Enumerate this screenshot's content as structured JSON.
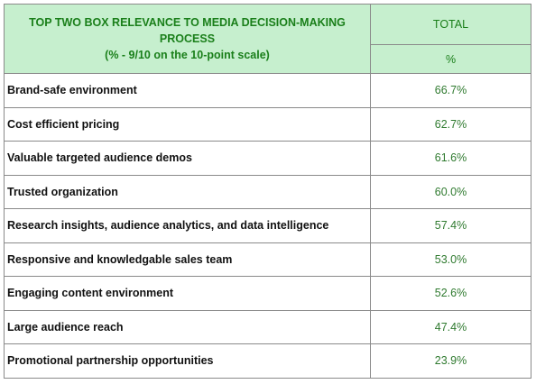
{
  "header": {
    "title_line1": "TOP TWO BOX RELEVANCE TO MEDIA DECISION-MAKING PROCESS",
    "title_line2": "(% - 9/10 on the 10-point scale)",
    "column_header": "TOTAL",
    "column_unit": "%"
  },
  "colors": {
    "header_fill": "#c6efce",
    "header_text": "#1a7f1a",
    "value_text": "#2f7a2f",
    "border": "#8a8a8a"
  },
  "chart_data": {
    "type": "table",
    "title": "TOP TWO BOX RELEVANCE TO MEDIA DECISION-MAKING PROCESS",
    "subtitle": "(% - 9/10 on the 10-point scale)",
    "columns": [
      "TOTAL"
    ],
    "unit": "%",
    "rows": [
      {
        "label": "Brand-safe environment",
        "value": "66.7%"
      },
      {
        "label": "Cost efficient pricing",
        "value": "62.7%"
      },
      {
        "label": "Valuable targeted audience demos",
        "value": "61.6%"
      },
      {
        "label": "Trusted organization",
        "value": "60.0%"
      },
      {
        "label": "Research insights, audience analytics, and data intelligence",
        "value": "57.4%"
      },
      {
        "label": "Responsive and knowledgable sales team",
        "value": "53.0%"
      },
      {
        "label": "Engaging content environment",
        "value": "52.6%"
      },
      {
        "label": "Large audience reach",
        "value": "47.4%"
      },
      {
        "label": "Promotional partnership opportunities",
        "value": "23.9%"
      }
    ]
  }
}
